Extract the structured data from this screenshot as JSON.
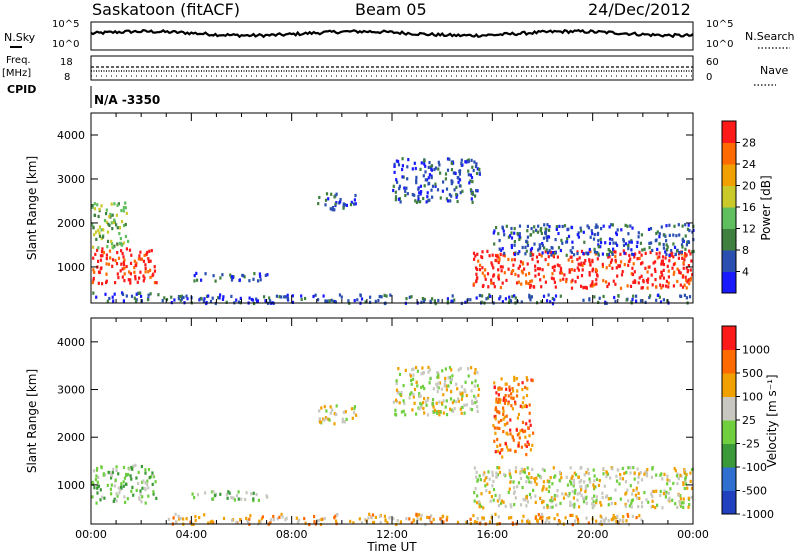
{
  "header": {
    "station": "Saskatoon (fitACF)",
    "beam": "Beam 05",
    "date": "24/Dec/2012"
  },
  "noise_panel": {
    "left_label": "N.Sky",
    "right_label": "N.Search",
    "left_ticks": [
      "10^5",
      "10^0"
    ],
    "right_ticks": [
      "10^5",
      "10^0"
    ]
  },
  "freq_panel": {
    "left_label_1": "Freq.",
    "left_label_2": "[MHz]",
    "cpid_label": "CPID",
    "right_label": "Nave",
    "left_ticks": [
      "18",
      "8"
    ],
    "right_ticks": [
      "60",
      "0"
    ]
  },
  "cpid_text": "N/A -3350",
  "time_axis": {
    "label": "Time UT",
    "ticks": [
      "00:00",
      "04:00",
      "08:00",
      "12:00",
      "16:00",
      "20:00",
      "00:00"
    ]
  },
  "power_panel": {
    "ylabel": "Slant Range [km]",
    "yticks": [
      "1000",
      "2000",
      "3000",
      "4000"
    ],
    "colorbar_label": "Power [dB]",
    "colorbar_ticks": [
      "28",
      "24",
      "20",
      "16",
      "12",
      "8",
      "4"
    ],
    "colors": [
      "#1a1aff",
      "#2a4fb0",
      "#3f7f3f",
      "#5fbf5f",
      "#c9c92a",
      "#f0a000",
      "#ff6a00",
      "#ff1a1a"
    ]
  },
  "velocity_panel": {
    "ylabel": "Slant Range [km]",
    "yticks": [
      "1000",
      "2000",
      "3000",
      "4000"
    ],
    "colorbar_label": "Velocity [m s⁻¹]",
    "colorbar_ticks": [
      "1000",
      "500",
      "100",
      "25",
      "-25",
      "-100",
      "-500",
      "-1000"
    ],
    "colors": [
      "#2040c0",
      "#2f6fcf",
      "#3a9a3a",
      "#6fcf3f",
      "#c8c8c0",
      "#f0a000",
      "#ff6a00",
      "#ff1a1a"
    ]
  },
  "chart_data": {
    "type": "heatmap",
    "x_range_hours": [
      0,
      24
    ],
    "y_range_km": [
      180,
      4500
    ],
    "power_regions": [
      {
        "t": [
          0.0,
          2.6
        ],
        "r": [
          650,
          1450
        ],
        "level": 7
      },
      {
        "t": [
          0.0,
          1.5
        ],
        "r": [
          1450,
          2500
        ],
        "level": 3
      },
      {
        "t": [
          0.0,
          3.0
        ],
        "r": [
          250,
          450
        ],
        "level": 1
      },
      {
        "t": [
          9.0,
          10.6
        ],
        "r": [
          2300,
          2700
        ],
        "level": 1
      },
      {
        "t": [
          12.0,
          15.5
        ],
        "r": [
          2500,
          3500
        ],
        "level": 1
      },
      {
        "t": [
          15.2,
          24.0
        ],
        "r": [
          550,
          1400
        ],
        "level": 7
      },
      {
        "t": [
          16.0,
          24.0
        ],
        "r": [
          1300,
          2000
        ],
        "level": 1
      },
      {
        "t": [
          4.0,
          7.0
        ],
        "r": [
          700,
          900
        ],
        "level": 1
      },
      {
        "t": [
          3.0,
          24.0
        ],
        "r": [
          200,
          400
        ],
        "level": 1
      }
    ],
    "velocity_regions": [
      {
        "t": [
          0.0,
          2.6
        ],
        "r": [
          650,
          1450
        ],
        "level": 3
      },
      {
        "t": [
          9.0,
          10.6
        ],
        "r": [
          2300,
          2700
        ],
        "level": 4
      },
      {
        "t": [
          12.0,
          15.5
        ],
        "r": [
          2500,
          3500
        ],
        "level": 4
      },
      {
        "t": [
          15.2,
          24.0
        ],
        "r": [
          550,
          1400
        ],
        "level": 4
      },
      {
        "t": [
          16.0,
          17.6
        ],
        "r": [
          1600,
          3300
        ],
        "level": 6
      },
      {
        "t": [
          3.0,
          22.0
        ],
        "r": [
          200,
          420
        ],
        "level": 5
      },
      {
        "t": [
          4.0,
          7.0
        ],
        "r": [
          700,
          900
        ],
        "level": 3
      }
    ]
  }
}
